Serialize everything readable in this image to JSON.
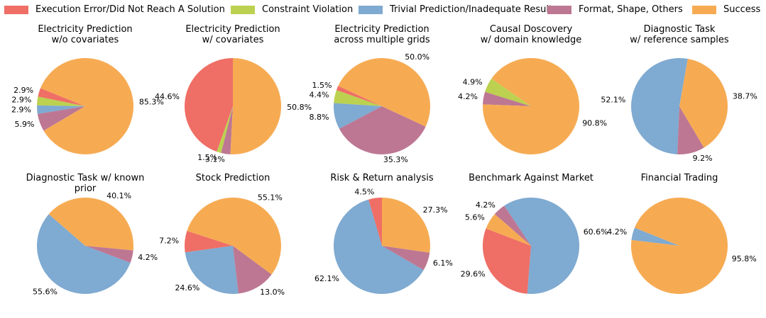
{
  "legend": [
    {
      "name": "Execution Error/Did Not Reach A Solution",
      "color": "#ef6e65"
    },
    {
      "name": "Constraint Violation",
      "color": "#bcd14f"
    },
    {
      "name": "Trivial Prediction/Inadequate Result",
      "color": "#7faad1"
    },
    {
      "name": "Format, Shape, Others",
      "color": "#bd7793"
    },
    {
      "name": "Success",
      "color": "#f6ab53"
    }
  ],
  "chart_data": [
    {
      "type": "pie",
      "title": "Electricity Prediction\nw/o covariates",
      "slices": [
        {
          "category": "Execution Error/Did Not Reach A Solution",
          "value": 2.9,
          "label": "2.9%"
        },
        {
          "category": "Constraint Violation",
          "value": 2.9,
          "label": "2.9%"
        },
        {
          "category": "Trivial Prediction/Inadequate Result",
          "value": 2.9,
          "label": "2.9%"
        },
        {
          "category": "Format, Shape, Others",
          "value": 5.9,
          "label": "5.9%"
        },
        {
          "category": "Success",
          "value": 85.3,
          "label": "85.3%"
        }
      ]
    },
    {
      "type": "pie",
      "title": "Electricity Prediction\nw/ covariates",
      "slices": [
        {
          "category": "Execution Error/Did Not Reach A Solution",
          "value": 44.6,
          "label": "44.6%"
        },
        {
          "category": "Constraint Violation",
          "value": 1.5,
          "label": "1.5%"
        },
        {
          "category": "Format, Shape, Others",
          "value": 3.1,
          "label": "3.1%"
        },
        {
          "category": "Success",
          "value": 50.8,
          "label": "50.8%"
        }
      ]
    },
    {
      "type": "pie",
      "title": "Electricity Prediction\nacross multiple grids",
      "slices": [
        {
          "category": "Execution Error/Did Not Reach A Solution",
          "value": 1.5,
          "label": "1.5%"
        },
        {
          "category": "Constraint Violation",
          "value": 4.4,
          "label": "4.4%"
        },
        {
          "category": "Trivial Prediction/Inadequate Result",
          "value": 8.8,
          "label": "8.8%"
        },
        {
          "category": "Format, Shape, Others",
          "value": 35.3,
          "label": "35.3%"
        },
        {
          "category": "Success",
          "value": 50.0,
          "label": "50.0%"
        }
      ]
    },
    {
      "type": "pie",
      "title": "Causal Doscovery\nw/ domain knowledge",
      "slices": [
        {
          "category": "Constraint Violation",
          "value": 4.9,
          "label": "4.9%"
        },
        {
          "category": "Format, Shape, Others",
          "value": 4.2,
          "label": "4.2%"
        },
        {
          "category": "Success",
          "value": 90.8,
          "label": "90.8%"
        }
      ]
    },
    {
      "type": "pie",
      "title": "Diagnostic Task\nw/ reference samples",
      "slices": [
        {
          "category": "Trivial Prediction/Inadequate Result",
          "value": 52.1,
          "label": "52.1%"
        },
        {
          "category": "Format, Shape, Others",
          "value": 9.2,
          "label": "9.2%"
        },
        {
          "category": "Success",
          "value": 38.7,
          "label": "38.7%"
        }
      ]
    },
    {
      "type": "pie",
      "title": "Diagnostic Task w/ known prior",
      "slices": [
        {
          "category": "Trivial Prediction/Inadequate Result",
          "value": 55.6,
          "label": "55.6%"
        },
        {
          "category": "Format, Shape, Others",
          "value": 4.2,
          "label": "4.2%"
        },
        {
          "category": "Success",
          "value": 40.1,
          "label": "40.1%"
        }
      ]
    },
    {
      "type": "pie",
      "title": "Stock Prediction",
      "slices": [
        {
          "category": "Execution Error/Did Not Reach A Solution",
          "value": 7.2,
          "label": "7.2%"
        },
        {
          "category": "Trivial Prediction/Inadequate Result",
          "value": 24.6,
          "label": "24.6%"
        },
        {
          "category": "Format, Shape, Others",
          "value": 13.0,
          "label": "13.0%"
        },
        {
          "category": "Success",
          "value": 55.1,
          "label": "55.1%"
        }
      ]
    },
    {
      "type": "pie",
      "title": "Risk & Return analysis",
      "slices": [
        {
          "category": "Execution Error/Did Not Reach A Solution",
          "value": 4.5,
          "label": "4.5%"
        },
        {
          "category": "Trivial Prediction/Inadequate Result",
          "value": 62.1,
          "label": "62.1%"
        },
        {
          "category": "Format, Shape, Others",
          "value": 6.1,
          "label": "6.1%"
        },
        {
          "category": "Success",
          "value": 27.3,
          "label": "27.3%"
        }
      ]
    },
    {
      "type": "pie",
      "title": "Benchmark Against Market",
      "slices": [
        {
          "category": "Execution Error/Did Not Reach A Solution",
          "value": 29.6,
          "label": "29.6%"
        },
        {
          "category": "Trivial Prediction/Inadequate Result",
          "value": 60.6,
          "label": "60.6%"
        },
        {
          "category": "Format, Shape, Others",
          "value": 4.2,
          "label": "4.2%"
        },
        {
          "category": "Success",
          "value": 5.6,
          "label": "5.6%"
        }
      ]
    },
    {
      "type": "pie",
      "title": "Financial Trading",
      "slices": [
        {
          "category": "Trivial Prediction/Inadequate Result",
          "value": 4.2,
          "label": "4.2%"
        },
        {
          "category": "Success",
          "value": 95.8,
          "label": "95.8%"
        }
      ]
    }
  ]
}
